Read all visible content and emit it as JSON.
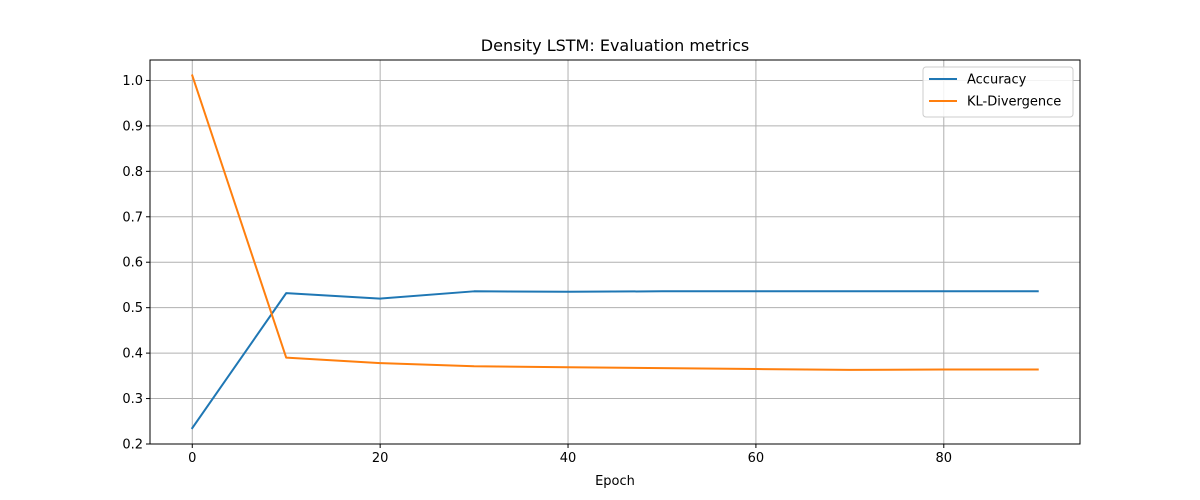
{
  "chart_data": {
    "type": "line",
    "title": "Density LSTM: Evaluation metrics",
    "xlabel": "Epoch",
    "ylabel": "",
    "xlim": [
      -4.5,
      94.5
    ],
    "ylim": [
      0.2,
      1.045
    ],
    "x_ticks": [
      0,
      20,
      40,
      60,
      80
    ],
    "y_ticks": [
      0.2,
      0.3,
      0.4,
      0.5,
      0.6,
      0.7,
      0.8,
      0.9,
      1.0
    ],
    "x_tick_labels": [
      "0",
      "20",
      "40",
      "60",
      "80"
    ],
    "y_tick_labels": [
      "0.2",
      "0.3",
      "0.4",
      "0.5",
      "0.6",
      "0.7",
      "0.8",
      "0.9",
      "1.0"
    ],
    "grid": true,
    "legend_position": "top-right",
    "x": [
      0,
      10,
      20,
      30,
      40,
      50,
      60,
      70,
      80,
      90
    ],
    "series": [
      {
        "name": "Accuracy",
        "color": "#1f77b4",
        "values": [
          0.235,
          0.532,
          0.52,
          0.536,
          0.535,
          0.536,
          0.536,
          0.536,
          0.536,
          0.536
        ]
      },
      {
        "name": "KL-Divergence",
        "color": "#ff7f0e",
        "values": [
          1.011,
          0.39,
          0.378,
          0.371,
          0.369,
          0.367,
          0.365,
          0.363,
          0.364,
          0.364
        ]
      }
    ]
  }
}
